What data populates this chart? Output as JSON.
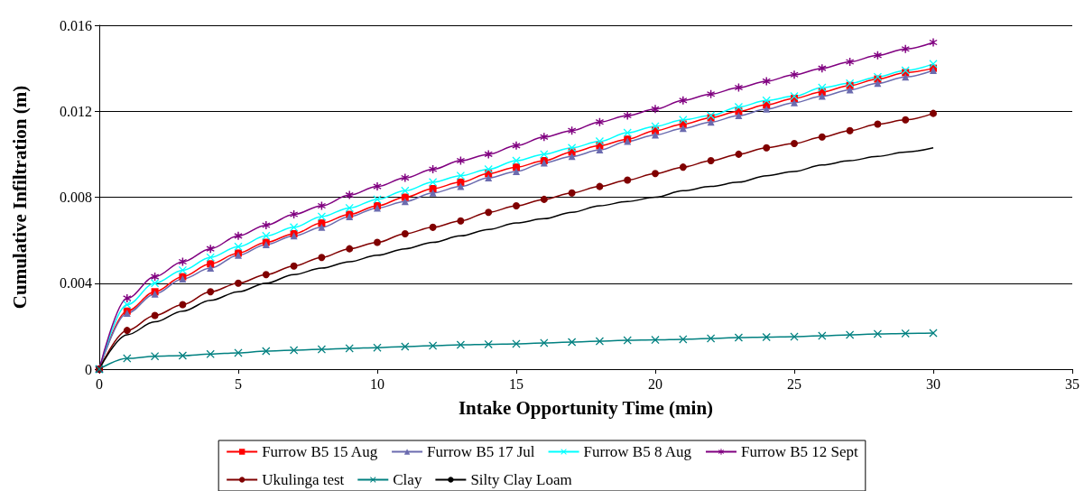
{
  "chart_data": {
    "type": "line",
    "xlabel": "Intake Opportunity Time (min)",
    "ylabel": "Cumulative Infiltration (m)",
    "x": [
      0,
      1,
      2,
      3,
      4,
      5,
      6,
      7,
      8,
      9,
      10,
      11,
      12,
      13,
      14,
      15,
      16,
      17,
      18,
      19,
      20,
      21,
      22,
      23,
      24,
      25,
      26,
      27,
      28,
      29,
      30
    ],
    "xlim": [
      0,
      35
    ],
    "xticks": [
      0,
      5,
      10,
      15,
      20,
      25,
      30,
      35
    ],
    "ylim": [
      0,
      0.016
    ],
    "yticks": [
      0,
      0.004,
      0.008,
      0.012,
      0.016
    ],
    "grid": "y",
    "legend": "bottom",
    "line_style": "solid",
    "series": [
      {
        "name": "Furrow B5 15 Aug",
        "color": "#ff0000",
        "marker": "square",
        "values": [
          0,
          0.0027,
          0.0036,
          0.0043,
          0.0049,
          0.0054,
          0.0059,
          0.0063,
          0.0068,
          0.0072,
          0.0076,
          0.008,
          0.0084,
          0.0087,
          0.0091,
          0.0094,
          0.0097,
          0.0101,
          0.0104,
          0.0107,
          0.0111,
          0.0114,
          0.0117,
          0.012,
          0.0123,
          0.0126,
          0.0129,
          0.0132,
          0.0135,
          0.0138,
          0.014
        ]
      },
      {
        "name": "Furrow B5 17 Jul",
        "color": "#6b6baf",
        "marker": "triangle",
        "values": [
          0,
          0.0026,
          0.0035,
          0.0042,
          0.0047,
          0.0053,
          0.0058,
          0.0062,
          0.0066,
          0.0071,
          0.0075,
          0.0078,
          0.0082,
          0.0085,
          0.0089,
          0.0092,
          0.0096,
          0.0099,
          0.0102,
          0.0106,
          0.0109,
          0.0112,
          0.0115,
          0.0118,
          0.0121,
          0.0124,
          0.0127,
          0.013,
          0.0133,
          0.0136,
          0.0139
        ]
      },
      {
        "name": "Furrow B5 8 Aug",
        "color": "#00ffff",
        "marker": "cross",
        "values": [
          0,
          0.003,
          0.004,
          0.0046,
          0.0052,
          0.0057,
          0.0062,
          0.0066,
          0.0071,
          0.0075,
          0.0079,
          0.0083,
          0.0087,
          0.009,
          0.0093,
          0.0097,
          0.01,
          0.0103,
          0.0106,
          0.011,
          0.0113,
          0.0116,
          0.0118,
          0.0122,
          0.0125,
          0.0127,
          0.0131,
          0.0133,
          0.0136,
          0.0139,
          0.0142
        ]
      },
      {
        "name": "Furrow B5 12 Sept",
        "color": "#800080",
        "marker": "star",
        "values": [
          0,
          0.0033,
          0.0043,
          0.005,
          0.0056,
          0.0062,
          0.0067,
          0.0072,
          0.0076,
          0.0081,
          0.0085,
          0.0089,
          0.0093,
          0.0097,
          0.01,
          0.0104,
          0.0108,
          0.0111,
          0.0115,
          0.0118,
          0.0121,
          0.0125,
          0.0128,
          0.0131,
          0.0134,
          0.0137,
          0.014,
          0.0143,
          0.0146,
          0.0149,
          0.0152
        ]
      },
      {
        "name": "Ukulinga test",
        "color": "#800000",
        "marker": "circle",
        "values": [
          0,
          0.0018,
          0.0025,
          0.003,
          0.0036,
          0.004,
          0.0044,
          0.0048,
          0.0052,
          0.0056,
          0.0059,
          0.0063,
          0.0066,
          0.0069,
          0.0073,
          0.0076,
          0.0079,
          0.0082,
          0.0085,
          0.0088,
          0.0091,
          0.0094,
          0.0097,
          0.01,
          0.0103,
          0.0105,
          0.0108,
          0.0111,
          0.0114,
          0.0116,
          0.0119
        ]
      },
      {
        "name": "Clay",
        "color": "#008080",
        "marker": "cross",
        "values": [
          0,
          0.0005,
          0.0006,
          0.00063,
          0.0007,
          0.00076,
          0.00084,
          0.00088,
          0.00092,
          0.00097,
          0.001,
          0.00105,
          0.00109,
          0.00113,
          0.00116,
          0.00118,
          0.00122,
          0.00126,
          0.0013,
          0.00134,
          0.00136,
          0.00139,
          0.00143,
          0.00147,
          0.00149,
          0.00151,
          0.00155,
          0.0016,
          0.00164,
          0.00166,
          0.00168
        ]
      },
      {
        "name": "Silty Clay Loam",
        "color": "#000000",
        "marker": "none",
        "values": [
          0,
          0.0016,
          0.0022,
          0.0027,
          0.0032,
          0.0036,
          0.004,
          0.0044,
          0.0047,
          0.005,
          0.0053,
          0.0056,
          0.0059,
          0.0062,
          0.0065,
          0.0068,
          0.007,
          0.0073,
          0.0076,
          0.0078,
          0.008,
          0.0083,
          0.0085,
          0.0087,
          0.009,
          0.0092,
          0.0095,
          0.0097,
          0.0099,
          0.0101,
          0.0103
        ]
      }
    ]
  }
}
